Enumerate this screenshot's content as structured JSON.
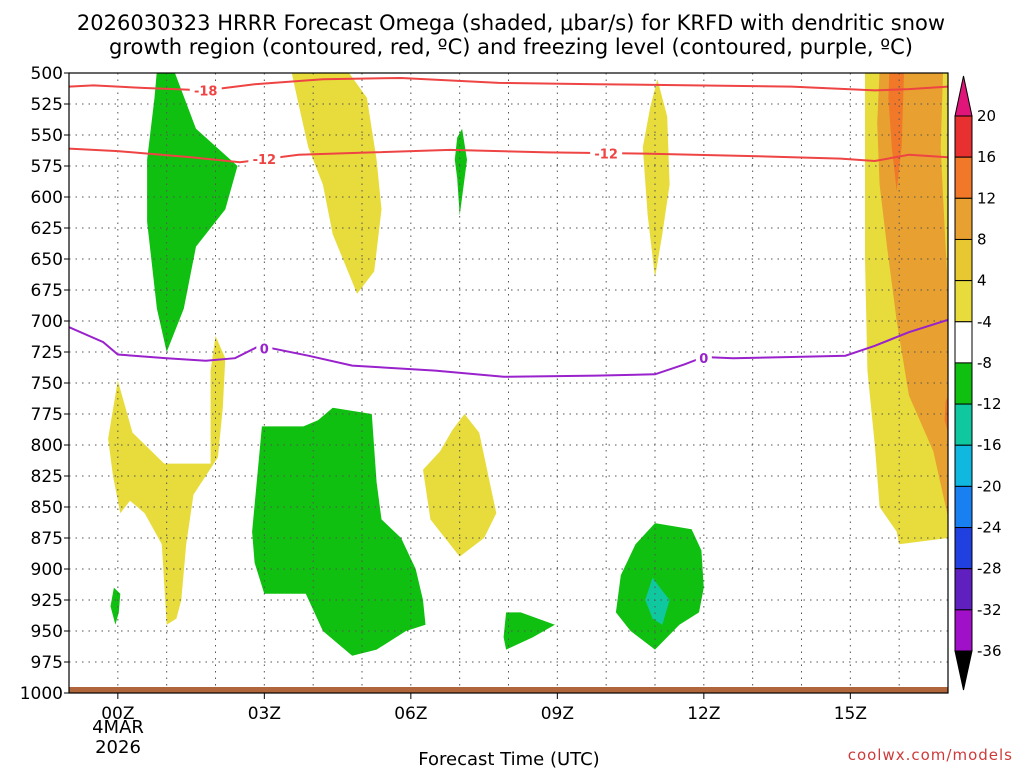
{
  "chart_data": {
    "type": "time-height cross section",
    "title_line1": "2026030323 HRRR Forecast Omega (shaded, μbar/s) for KRFD with dendritic snow",
    "title_line2": "growth region (contoured, red, ºC) and freezing level (contoured, purple, ºC)",
    "xlabel": "Forecast Time (UTC)",
    "credit": "coolwx.com/models",
    "x_range_hours": [
      -1.0,
      17.0
    ],
    "y_range_hPa": [
      500,
      1000
    ],
    "y_ticks": [
      "500",
      "525",
      "550",
      "575",
      "600",
      "625",
      "650",
      "675",
      "700",
      "725",
      "750",
      "775",
      "800",
      "825",
      "850",
      "875",
      "900",
      "925",
      "950",
      "975",
      "1000"
    ],
    "x_ticks": [
      {
        "hour": 0,
        "label": "00Z"
      },
      {
        "hour": 3,
        "label": "03Z"
      },
      {
        "hour": 6,
        "label": "06Z"
      },
      {
        "hour": 9,
        "label": "09Z"
      },
      {
        "hour": 12,
        "label": "12Z"
      },
      {
        "hour": 15,
        "label": "15Z"
      }
    ],
    "date_label_line1": "4MAR",
    "date_label_line2": "2026",
    "colorbar": {
      "labels": [
        "20",
        "16",
        "12",
        "8",
        "4",
        "-4",
        "-8",
        "-12",
        "-16",
        "-20",
        "-24",
        "-28",
        "-32",
        "-36"
      ],
      "colors": [
        "#e83030",
        "#f07828",
        "#e8a030",
        "#e8c830",
        "#e8dc3c",
        "#ffffff",
        "#10c010",
        "#10c8a0",
        "#10b8e0",
        "#1880f0",
        "#2040e0",
        "#6020c0",
        "#a010c8",
        "#a8a8a8"
      ],
      "top_arrow_color": "#e0157a",
      "bottom_arrow_color": "#000000"
    },
    "shading": [
      {
        "name": "green-0130Z-upper",
        "value": -6,
        "color": "#10c010",
        "points": [
          [
            0.8,
            498
          ],
          [
            1.15,
            498
          ],
          [
            1.6,
            545
          ],
          [
            2.45,
            575
          ],
          [
            2.2,
            610
          ],
          [
            1.6,
            640
          ],
          [
            1.35,
            690
          ],
          [
            1.0,
            725
          ],
          [
            0.8,
            690
          ],
          [
            0.6,
            620
          ],
          [
            0.6,
            570
          ],
          [
            0.75,
            520
          ]
        ]
      },
      {
        "name": "yellow-0430Z-upper",
        "value": 5,
        "color": "#e8dc3c",
        "points": [
          [
            3.55,
            498
          ],
          [
            4.7,
            498
          ],
          [
            5.1,
            520
          ],
          [
            5.3,
            570
          ],
          [
            5.4,
            610
          ],
          [
            5.25,
            660
          ],
          [
            4.9,
            678
          ],
          [
            4.4,
            630
          ],
          [
            4.2,
            590
          ],
          [
            3.9,
            560
          ],
          [
            3.7,
            525
          ]
        ]
      },
      {
        "name": "green-07Z-upper",
        "value": -6,
        "color": "#10c010",
        "points": [
          [
            6.95,
            552
          ],
          [
            7.05,
            545
          ],
          [
            7.15,
            570
          ],
          [
            7.0,
            615
          ],
          [
            6.95,
            585
          ],
          [
            6.9,
            570
          ]
        ]
      },
      {
        "name": "yellow-11Z-upper",
        "value": 5,
        "color": "#e8dc3c",
        "points": [
          [
            10.9,
            528
          ],
          [
            11.05,
            505
          ],
          [
            11.25,
            535
          ],
          [
            11.3,
            590
          ],
          [
            11.15,
            630
          ],
          [
            11.0,
            665
          ],
          [
            10.85,
            615
          ],
          [
            10.75,
            560
          ]
        ]
      },
      {
        "name": "yellow-15Z-strip",
        "value": 5,
        "color": "#e8dc3c",
        "points": [
          [
            15.3,
            498
          ],
          [
            17.0,
            498
          ],
          [
            17.0,
            875
          ],
          [
            16.0,
            880
          ],
          [
            15.95,
            870
          ],
          [
            15.6,
            850
          ],
          [
            15.5,
            800
          ],
          [
            15.35,
            740
          ],
          [
            15.3,
            650
          ]
        ]
      },
      {
        "name": "orange-16Z-strip",
        "value": 9,
        "color": "#e8a030",
        "points": [
          [
            15.6,
            498
          ],
          [
            16.9,
            498
          ],
          [
            16.85,
            560
          ],
          [
            16.9,
            600
          ],
          [
            16.95,
            640
          ],
          [
            16.98,
            660
          ],
          [
            17.0,
            700
          ],
          [
            17.0,
            858
          ],
          [
            16.7,
            805
          ],
          [
            16.2,
            760
          ],
          [
            15.95,
            700
          ],
          [
            15.75,
            640
          ],
          [
            15.6,
            590
          ],
          [
            15.55,
            540
          ]
        ]
      },
      {
        "name": "red-16Z-core",
        "value": 14,
        "color": "#f07828",
        "points": [
          [
            15.8,
            498
          ],
          [
            16.1,
            498
          ],
          [
            16.05,
            560
          ],
          [
            15.95,
            595
          ],
          [
            15.85,
            560
          ],
          [
            15.78,
            520
          ]
        ]
      },
      {
        "name": "red-1658Z-blip",
        "value": 14,
        "color": "#f07828",
        "points": [
          [
            16.95,
            765
          ],
          [
            17.0,
            760
          ],
          [
            17.0,
            790
          ],
          [
            16.93,
            780
          ]
        ]
      },
      {
        "name": "yellow-0130Z-lower",
        "value": 5,
        "color": "#e8dc3c",
        "points": [
          [
            0.0,
            748
          ],
          [
            0.3,
            790
          ],
          [
            0.95,
            815
          ],
          [
            1.9,
            815
          ],
          [
            1.9,
            740
          ],
          [
            2.0,
            712
          ],
          [
            2.2,
            730
          ],
          [
            2.15,
            770
          ],
          [
            2.05,
            810
          ],
          [
            1.55,
            840
          ],
          [
            1.4,
            880
          ],
          [
            1.3,
            925
          ],
          [
            1.2,
            940
          ],
          [
            1.0,
            945
          ],
          [
            0.9,
            880
          ],
          [
            0.55,
            855
          ],
          [
            0.25,
            845
          ],
          [
            0.05,
            855
          ],
          [
            -0.1,
            825
          ],
          [
            -0.2,
            795
          ]
        ]
      },
      {
        "name": "green-0430Z-lower",
        "value": -6,
        "color": "#10c010",
        "points": [
          [
            2.95,
            785
          ],
          [
            3.8,
            785
          ],
          [
            4.1,
            780
          ],
          [
            4.4,
            770
          ],
          [
            5.2,
            775
          ],
          [
            5.3,
            830
          ],
          [
            5.4,
            860
          ],
          [
            5.8,
            875
          ],
          [
            6.1,
            900
          ],
          [
            6.25,
            925
          ],
          [
            6.3,
            945
          ],
          [
            5.9,
            950
          ],
          [
            5.3,
            965
          ],
          [
            4.8,
            970
          ],
          [
            4.2,
            950
          ],
          [
            3.85,
            920
          ],
          [
            3.0,
            920
          ],
          [
            2.8,
            895
          ],
          [
            2.75,
            870
          ]
        ]
      },
      {
        "name": "yellow-07Z-lower",
        "value": 5,
        "color": "#e8dc3c",
        "points": [
          [
            6.85,
            788
          ],
          [
            7.1,
            775
          ],
          [
            7.4,
            790
          ],
          [
            7.75,
            855
          ],
          [
            7.5,
            875
          ],
          [
            7.0,
            890
          ],
          [
            6.4,
            860
          ],
          [
            6.25,
            820
          ],
          [
            6.6,
            805
          ]
        ]
      },
      {
        "name": "green-08Z-blip",
        "value": -6,
        "color": "#10c010",
        "points": [
          [
            7.95,
            935
          ],
          [
            8.25,
            935
          ],
          [
            8.95,
            945
          ],
          [
            8.5,
            955
          ],
          [
            7.95,
            965
          ],
          [
            7.9,
            955
          ]
        ]
      },
      {
        "name": "green-11Z-lower",
        "value": -6,
        "color": "#10c010",
        "points": [
          [
            11.0,
            863
          ],
          [
            11.75,
            868
          ],
          [
            11.95,
            885
          ],
          [
            12.0,
            915
          ],
          [
            11.9,
            935
          ],
          [
            11.5,
            945
          ],
          [
            11.0,
            965
          ],
          [
            10.5,
            950
          ],
          [
            10.2,
            935
          ],
          [
            10.3,
            905
          ],
          [
            10.6,
            880
          ]
        ]
      },
      {
        "name": "teal-11Z-core",
        "value": -9,
        "color": "#10c8a0",
        "points": [
          [
            10.95,
            907
          ],
          [
            11.1,
            915
          ],
          [
            11.3,
            925
          ],
          [
            11.15,
            945
          ],
          [
            10.95,
            940
          ],
          [
            10.8,
            925
          ]
        ]
      },
      {
        "name": "green-00Z-blip",
        "value": -6,
        "color": "#10c010",
        "points": [
          [
            -0.15,
            930
          ],
          [
            -0.08,
            915
          ],
          [
            0.05,
            920
          ],
          [
            0.02,
            935
          ],
          [
            -0.05,
            945
          ],
          [
            -0.15,
            930
          ]
        ]
      }
    ],
    "contours": [
      {
        "label": "-18",
        "color": "#ee4444",
        "points": [
          [
            -1.0,
            511
          ],
          [
            -0.5,
            510
          ],
          [
            0.5,
            512
          ],
          [
            1.8,
            514
          ],
          [
            2.8,
            509
          ],
          [
            4.2,
            505
          ],
          [
            5.8,
            504
          ],
          [
            7.8,
            508
          ],
          [
            9.8,
            509
          ],
          [
            11.8,
            510
          ],
          [
            13.8,
            511
          ],
          [
            15.5,
            514
          ],
          [
            16.2,
            513
          ],
          [
            17.0,
            511
          ]
        ],
        "label_at_hour": 1.8
      },
      {
        "label": "-12",
        "color": "#ee4444",
        "points": [
          [
            -1.0,
            561
          ],
          [
            0.0,
            563
          ],
          [
            1.5,
            568
          ],
          [
            2.5,
            572
          ],
          [
            3.7,
            566
          ],
          [
            5.2,
            564
          ],
          [
            6.8,
            562
          ],
          [
            8.8,
            564
          ],
          [
            10.8,
            565
          ],
          [
            13.0,
            567
          ],
          [
            14.8,
            569
          ],
          [
            15.5,
            571
          ],
          [
            16.2,
            566
          ],
          [
            17.0,
            568
          ]
        ],
        "label_at_hour": 3.0
      },
      {
        "label": "-12",
        "color": "#ee4444",
        "points": [],
        "label_at_hour": 10.0,
        "label_pressure": 565
      },
      {
        "label": "0",
        "color": "#9922cc",
        "points": [
          [
            -1.0,
            705
          ],
          [
            -0.3,
            717
          ],
          [
            0.0,
            727
          ],
          [
            1.0,
            730
          ],
          [
            1.8,
            732
          ],
          [
            2.4,
            730
          ],
          [
            2.9,
            720
          ],
          [
            3.9,
            728
          ],
          [
            4.8,
            736
          ],
          [
            6.5,
            740
          ],
          [
            7.9,
            745
          ],
          [
            9.8,
            744
          ],
          [
            11.0,
            743
          ],
          [
            11.6,
            735
          ],
          [
            12.0,
            729
          ],
          [
            12.6,
            730
          ],
          [
            13.8,
            729
          ],
          [
            14.9,
            728
          ],
          [
            15.5,
            720
          ],
          [
            16.2,
            709
          ],
          [
            17.0,
            699
          ]
        ],
        "label_at_hour": 3.0,
        "label_pressure": 722
      },
      {
        "label": "0",
        "color": "#9922cc",
        "points": [],
        "label_at_hour": 12.0,
        "label_pressure": 730
      }
    ],
    "ground_color": "#b0663a"
  }
}
